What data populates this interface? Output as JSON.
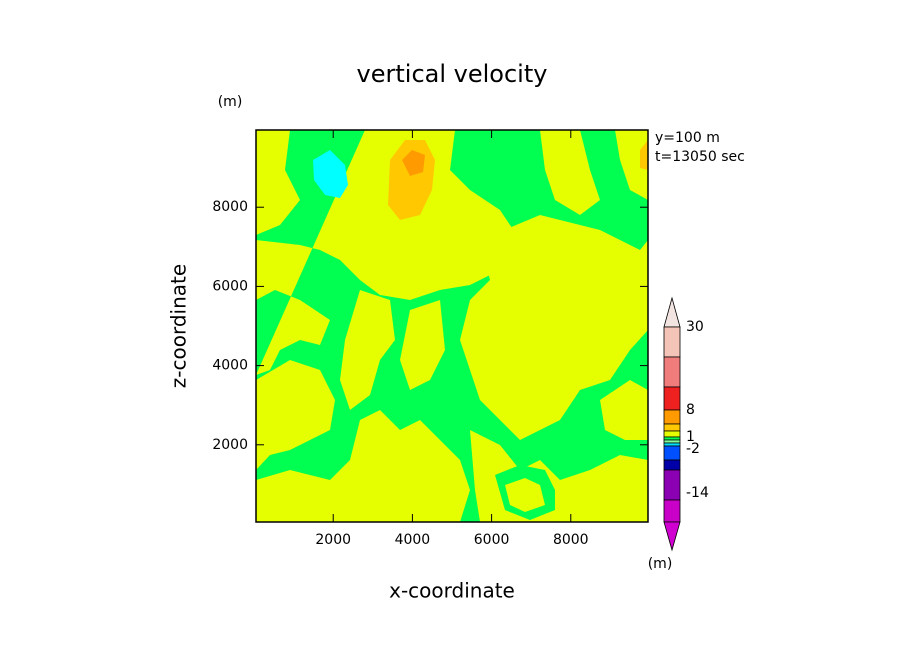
{
  "chart_data": {
    "type": "contour",
    "title": "vertical velocity",
    "xlabel": "x-coordinate",
    "ylabel": "z-coordinate",
    "y_unit": "(m)",
    "annotations": [
      "y=100 m",
      "t=13050 sec"
    ],
    "xlim": [
      50,
      9950
    ],
    "ylim": [
      50,
      9950
    ],
    "xticks": [
      2000,
      4000,
      6000,
      8000
    ],
    "yticks": [
      2000,
      4000,
      6000,
      8000
    ],
    "colorbar": {
      "colors": [
        "#f2e4e0",
        "#f5c4b8",
        "#f07c7c",
        "#ee2020",
        "#ff9a00",
        "#ffc800",
        "#e6ff00",
        "#00ff50",
        "#80ff9c",
        "#00e0ff",
        "#0050ff",
        "#0000a8",
        "#8c00b4",
        "#c800c8",
        "#d000d0"
      ],
      "ticks": [
        30,
        8,
        1,
        -2,
        -14
      ],
      "unit": "(m)"
    }
  }
}
